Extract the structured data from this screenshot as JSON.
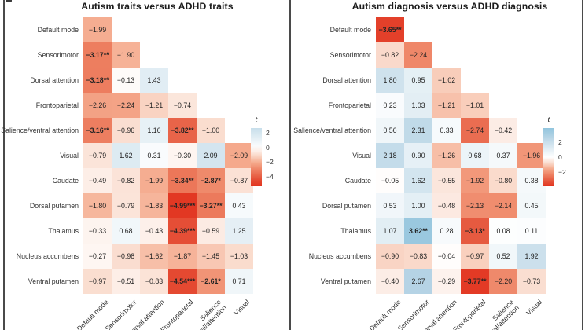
{
  "colors": {
    "pos_max": "#92c5de",
    "neg_max": "#e2341f",
    "cell_text": "#242424",
    "frame_line": "#4a4a4a",
    "title_text": "#1c1c1c"
  },
  "chart_data": [
    {
      "type": "heatmap",
      "title": "Autism traits versus ADHD traits",
      "stat_label": "t",
      "rows": [
        "Default mode",
        "Sensorimotor",
        "Dorsal attention",
        "Frontoparietal",
        "Salience/ventral attention",
        "Visual",
        "Caudate",
        "Dorsal putamen",
        "Thalamus",
        "Nucleus accumbens",
        "Ventral putamen"
      ],
      "col_labels": [
        [
          "Default mode"
        ],
        [
          "Sensorimotor"
        ],
        [
          "Dorsal attention"
        ],
        [
          "Frontoparietal"
        ],
        [
          "Salience",
          "ventral/attention"
        ],
        [
          "Visual"
        ]
      ],
      "values": [
        [
          -1.99
        ],
        [
          -3.17,
          -1.9
        ],
        [
          -3.18,
          -0.13,
          1.43
        ],
        [
          -2.26,
          -2.24,
          -1.21,
          -0.74
        ],
        [
          -3.16,
          -0.96,
          1.16,
          -3.82,
          -1.0
        ],
        [
          -0.79,
          1.62,
          0.31,
          -0.3,
          2.09,
          -2.09
        ],
        [
          -0.49,
          -0.82,
          -1.99,
          -3.34,
          -2.87,
          -0.87
        ],
        [
          -1.8,
          -0.79,
          -1.83,
          -4.99,
          -3.27,
          0.43
        ],
        [
          -0.33,
          0.68,
          -0.43,
          -4.39,
          -0.59,
          1.25
        ],
        [
          -0.27,
          -0.98,
          -1.62,
          -1.87,
          -1.45,
          -1.03
        ],
        [
          -0.97,
          -0.51,
          -0.83,
          -4.54,
          -2.61,
          0.71
        ]
      ],
      "cell_labels": [
        [
          "−1.99"
        ],
        [
          "−3.17**",
          "−1.90"
        ],
        [
          "−3.18**",
          "−0.13",
          "1.43"
        ],
        [
          "−2.26",
          "−2.24",
          "−1.21",
          "−0.74"
        ],
        [
          "−3.16**",
          "−0.96",
          "1.16",
          "−3.82**",
          "−1.00"
        ],
        [
          "−0.79",
          "1.62",
          "0.31",
          "−0.30",
          "2.09",
          "−2.09"
        ],
        [
          "−0.49",
          "−0.82",
          "−1.99",
          "−3.34**",
          "−2.87*",
          "−0.87"
        ],
        [
          "−1.80",
          "−0.79",
          "−1.83",
          "−4.99***",
          "−3.27**",
          "0.43"
        ],
        [
          "−0.33",
          "0.68",
          "−0.43",
          "−4.39***",
          "−0.59",
          "1.25"
        ],
        [
          "−0.27",
          "−0.98",
          "−1.62",
          "−1.87",
          "−1.45",
          "−1.03"
        ],
        [
          "−0.97",
          "−0.51",
          "−0.83",
          "−4.54***",
          "−2.61*",
          "0.71"
        ]
      ],
      "vabs": 5.1,
      "colorbar": {
        "label": "t",
        "top_value": 2.7,
        "bottom_value": -5.3,
        "tick_values": [
          2,
          0,
          -2,
          -4
        ],
        "tick_labels": [
          "2",
          "0",
          "−2",
          "−4"
        ]
      }
    },
    {
      "type": "heatmap",
      "title": "Autism diagnosis versus ADHD diagnosis",
      "stat_label": "t",
      "rows": [
        "Default mode",
        "Sensorimotor",
        "Dorsal attention",
        "Frontoparietal",
        "Salience/ventral attention",
        "Visual",
        "Caudate",
        "Dorsal putamen",
        "Thalamus",
        "Nucleus accumbens",
        "Ventral putamen"
      ],
      "col_labels": [
        [
          "Default mode"
        ],
        [
          "Sensorimotor"
        ],
        [
          "Dorsal attention"
        ],
        [
          "Frontoparietal"
        ],
        [
          "Salience",
          "ventral/attention"
        ],
        [
          "Visual"
        ]
      ],
      "values": [
        [
          -3.65
        ],
        [
          -0.82,
          -2.24
        ],
        [
          1.8,
          0.95,
          -1.02
        ],
        [
          0.23,
          1.03,
          -1.21,
          -1.01
        ],
        [
          0.56,
          2.31,
          0.33,
          -2.74,
          -0.42
        ],
        [
          2.18,
          0.9,
          -1.26,
          0.68,
          0.37,
          -1.96
        ],
        [
          -0.05,
          1.62,
          -0.55,
          -1.92,
          -0.8,
          0.38
        ],
        [
          0.53,
          1.0,
          -0.48,
          -2.13,
          -2.14,
          0.45
        ],
        [
          1.07,
          3.62,
          0.28,
          -3.13,
          0.08,
          0.11
        ],
        [
          -0.9,
          -0.83,
          -0.04,
          -0.97,
          0.52,
          1.92
        ],
        [
          -0.4,
          2.67,
          -0.29,
          -3.77,
          -2.2,
          -0.73
        ]
      ],
      "cell_labels": [
        [
          "−3.65**"
        ],
        [
          "−0.82",
          "−2.24"
        ],
        [
          "1.80",
          "0.95",
          "−1.02"
        ],
        [
          "0.23",
          "1.03",
          "−1.21",
          "−1.01"
        ],
        [
          "0.56",
          "2.31",
          "0.33",
          "−2.74",
          "−0.42"
        ],
        [
          "2.18",
          "0.90",
          "−1.26",
          "0.68",
          "0.37",
          "−1.96"
        ],
        [
          "−0.05",
          "1.62",
          "−0.55",
          "−1.92",
          "−0.80",
          "0.38"
        ],
        [
          "0.53",
          "1.00",
          "−0.48",
          "−2.13",
          "−2.14",
          "0.45"
        ],
        [
          "1.07",
          "3.62**",
          "0.28",
          "−3.13*",
          "0.08",
          "0.11"
        ],
        [
          "−0.90",
          "−0.83",
          "−0.04",
          "−0.97",
          "0.52",
          "1.92"
        ],
        [
          "−0.40",
          "2.67",
          "−0.29",
          "−3.77**",
          "−2.20",
          "−0.73"
        ]
      ],
      "vabs": 3.9,
      "colorbar": {
        "label": "t",
        "top_value": 3.9,
        "bottom_value": -3.9,
        "tick_values": [
          2,
          0,
          -2
        ],
        "tick_labels": [
          "2",
          "0",
          "−2"
        ]
      }
    }
  ]
}
